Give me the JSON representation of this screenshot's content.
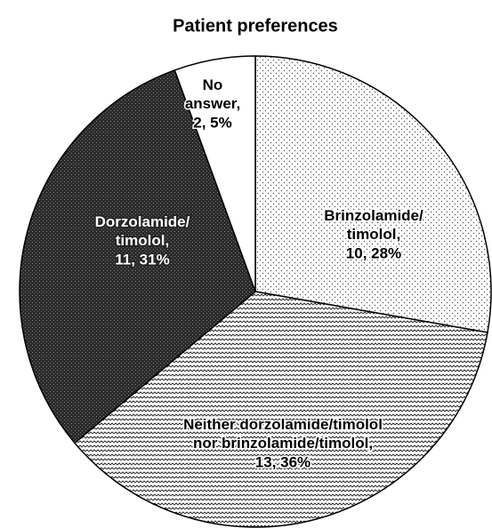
{
  "chart_data": {
    "type": "pie",
    "title": "Patient preferences",
    "categories": [
      "Brinzolamide/\ntimolol,",
      "Neither dorzolamide/timolol\nnor brinzolamide/timolol,",
      "Dorzolamide/\ntimolol,",
      "No\nanswer,"
    ],
    "values": [
      10,
      13,
      11,
      2
    ],
    "value_labels": [
      "10, 28%",
      "13, 36%",
      "11, 31%",
      "2, 5%"
    ],
    "patterns": [
      "dots",
      "zigzag",
      "dark",
      "none"
    ]
  }
}
